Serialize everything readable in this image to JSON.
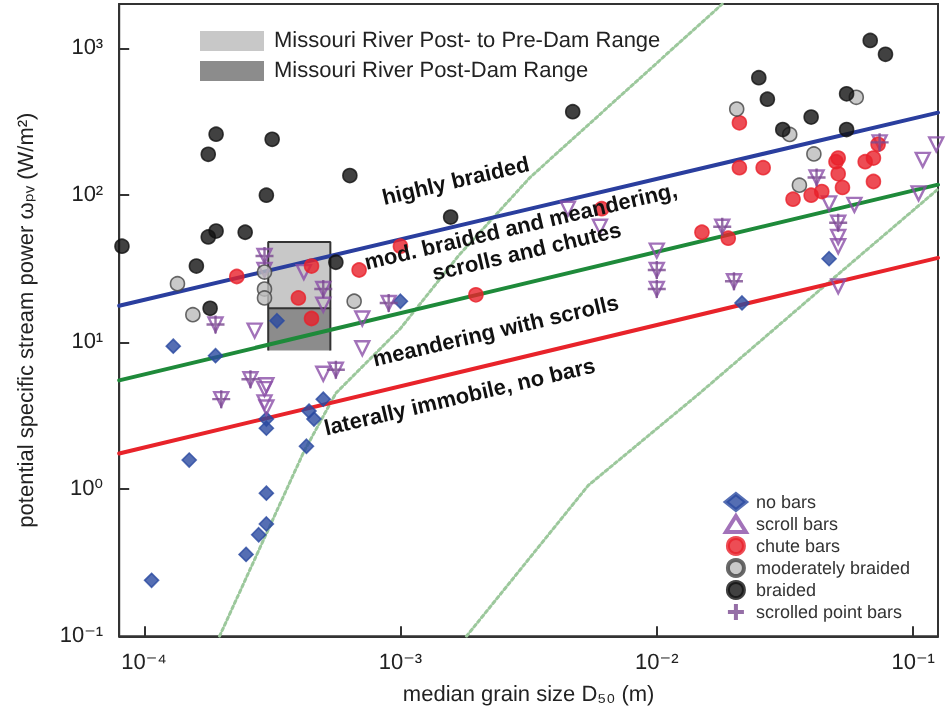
{
  "chart_data": {
    "type": "scatter",
    "xlabel": "median grain size D₅₀ (m)",
    "ylabel": "potential specific stream power ωₚᵥ (W/m²)",
    "log": "xy",
    "xlim": [
      8e-05,
      0.125
    ],
    "ylim": [
      0.1,
      2000
    ],
    "xticks": [
      {
        "value": 0.0001,
        "label": "10⁻⁴"
      },
      {
        "value": 0.001,
        "label": "10⁻³"
      },
      {
        "value": 0.01,
        "label": "10⁻²"
      },
      {
        "value": 0.1,
        "label": "10⁻¹"
      }
    ],
    "yticks": [
      {
        "value": 0.1,
        "label": "10⁻¹"
      },
      {
        "value": 1,
        "label": "10⁰"
      },
      {
        "value": 10,
        "label": "10¹"
      },
      {
        "value": 100,
        "label": "10²"
      },
      {
        "value": 1000,
        "label": "10³"
      }
    ],
    "grid": false,
    "legend": "bottom right",
    "series": [
      {
        "type": "area",
        "name": "Missouri River Post- to Pre-Dam Range",
        "color": "#c8c8c8",
        "x": [
          0.000305,
          0.000305,
          0.000533,
          0.000533
        ],
        "values": [
          17,
          48,
          48,
          17
        ]
      },
      {
        "type": "area",
        "name": "Missouri River Post-Dam Range",
        "color": "#8c8c8c",
        "x": [
          0.000305,
          0.000305,
          0.000533,
          0.000533
        ],
        "values": [
          8.8,
          17,
          17,
          8.8
        ]
      },
      {
        "type": "line",
        "color": "#9cc89c",
        "line_style": "dotted",
        "marker": "none",
        "x": [
          0.000197,
          0.00042,
          0.00056,
          0.001,
          0.00169,
          0.0032,
          0.018
        ],
        "values": [
          0.1,
          1.8,
          4.5,
          12.4,
          39,
          132,
          2000
        ]
      },
      {
        "type": "line",
        "color": "#9cc89c",
        "line_style": "dotted",
        "marker": "none",
        "x": [
          0.00181,
          0.0054,
          0.0147,
          0.0498,
          0.125
        ],
        "values": [
          0.1,
          1.06,
          4.5,
          28,
          110
        ]
      },
      {
        "type": "line",
        "color": "#2a3e9e",
        "line_style": "solid",
        "marker": "none",
        "x": [
          8e-05,
          0.125
        ],
        "values": [
          17.7,
          365
        ]
      },
      {
        "type": "line",
        "color": "#1e8a3a",
        "line_style": "solid",
        "marker": "none",
        "x": [
          8e-05,
          0.125
        ],
        "values": [
          5.5,
          118
        ]
      },
      {
        "type": "line",
        "color": "#e8232a",
        "line_style": "solid",
        "marker": "none",
        "x": [
          8e-05,
          0.125
        ],
        "values": [
          1.75,
          37.5
        ]
      },
      {
        "name": "no bars",
        "color": "#2b4aa0",
        "marker": "diamond",
        "x": [
          0.00013,
          0.00019,
          0.00015,
          0.000107,
          0.00025,
          0.00028,
          0.0003,
          0.0003,
          0.0003,
          0.0003,
          0.00043,
          0.00044,
          0.00046,
          0.0005,
          0.00033,
          0.001,
          0.047,
          0.0215
        ],
        "values": [
          9.4,
          8.1,
          1.58,
          0.24,
          0.36,
          0.49,
          0.58,
          0.94,
          2.6,
          3.0,
          1.96,
          3.4,
          3.0,
          4.1,
          14,
          19,
          37,
          18.5
        ]
      },
      {
        "name": "scroll bars",
        "color": "#8b4fa8",
        "marker": "triangle",
        "x": [
          0.000295,
          0.000295,
          0.00042,
          0.0005,
          0.00071,
          0.0009,
          0.00019,
          0.00027,
          0.0005,
          0.00071,
          0.0005,
          0.00056,
          0.000295,
          0.0002,
          0.00026,
          0.0003,
          0.0003,
          0.000295,
          0.0045,
          0.006,
          0.01,
          0.01,
          0.01,
          0.018,
          0.02,
          0.051,
          0.051,
          0.051,
          0.051,
          0.042,
          0.047,
          0.059,
          0.105,
          0.109,
          0.123,
          0.074
        ],
        "values": [
          38.6,
          31,
          30,
          23,
          14.5,
          18.5,
          13.2,
          12,
          18,
          9.1,
          6.1,
          6.5,
          3.9,
          4.1,
          5.6,
          5.1,
          3.6,
          4.8,
          81,
          61,
          42,
          31,
          23,
          61,
          26,
          65,
          52,
          45,
          24,
          132,
          88,
          86,
          103,
          174,
          222,
          229
        ]
      },
      {
        "name": "chute bars",
        "color": "#e8202a",
        "marker": "circle",
        "x": [
          0.00023,
          0.00045,
          0.0004,
          0.00045,
          0.00069,
          0.001,
          0.00197,
          0.021,
          0.021,
          0.026,
          0.015,
          0.019,
          0.0061,
          0.034,
          0.04,
          0.044,
          0.05,
          0.051,
          0.053,
          0.065,
          0.07,
          0.073,
          0.07,
          0.051
        ],
        "values": [
          28,
          33,
          20,
          14.5,
          31,
          45,
          21,
          311,
          154,
          154,
          56,
          51,
          81,
          94,
          100,
          106,
          169,
          140,
          113,
          169,
          179,
          222,
          124,
          179
        ]
      },
      {
        "name": "moderately braided",
        "color": "#bbbbbb",
        "marker": "circle",
        "x": [
          0.000135,
          0.000155,
          0.000295,
          0.000295,
          0.000295,
          0.00066,
          0.0205,
          0.033,
          0.041,
          0.036,
          0.06
        ],
        "values": [
          25,
          15.4,
          30,
          23,
          20,
          19,
          386,
          259,
          191,
          117,
          464
        ]
      },
      {
        "name": "braided",
        "color": "#111111",
        "marker": "circle",
        "x": [
          8.2e-05,
          0.00016,
          0.000178,
          0.000191,
          0.000178,
          0.000191,
          0.000248,
          0.0003,
          0.000316,
          0.000635,
          0.00056,
          0.000181,
          0.00157,
          0.0047,
          0.025,
          0.027,
          0.031,
          0.04,
          0.055,
          0.055,
          0.068,
          0.078
        ],
        "values": [
          45,
          33,
          190,
          260,
          52,
          57,
          56,
          100,
          240,
          136,
          35,
          17,
          71,
          370,
          630,
          450,
          280,
          340,
          490,
          280,
          1130,
          910
        ]
      },
      {
        "name": "scrolled point bars",
        "color": "#7a4a90",
        "marker": "cross",
        "x": [
          0.00019,
          0.000295,
          0.0005,
          0.0009,
          0.00026,
          0.0002,
          0.00056,
          0.01,
          0.01,
          0.018,
          0.02,
          0.051,
          0.042,
          0.074
        ],
        "values": [
          13.2,
          38.6,
          23,
          18.5,
          5.6,
          4.1,
          6.5,
          31,
          23,
          61,
          26,
          65,
          132,
          229
        ]
      }
    ],
    "annotations": [
      "highly braided",
      "mod. braided and meandering,\nscrolls and chutes",
      "meandering with scrolls",
      "laterally immobile, no bars"
    ]
  }
}
